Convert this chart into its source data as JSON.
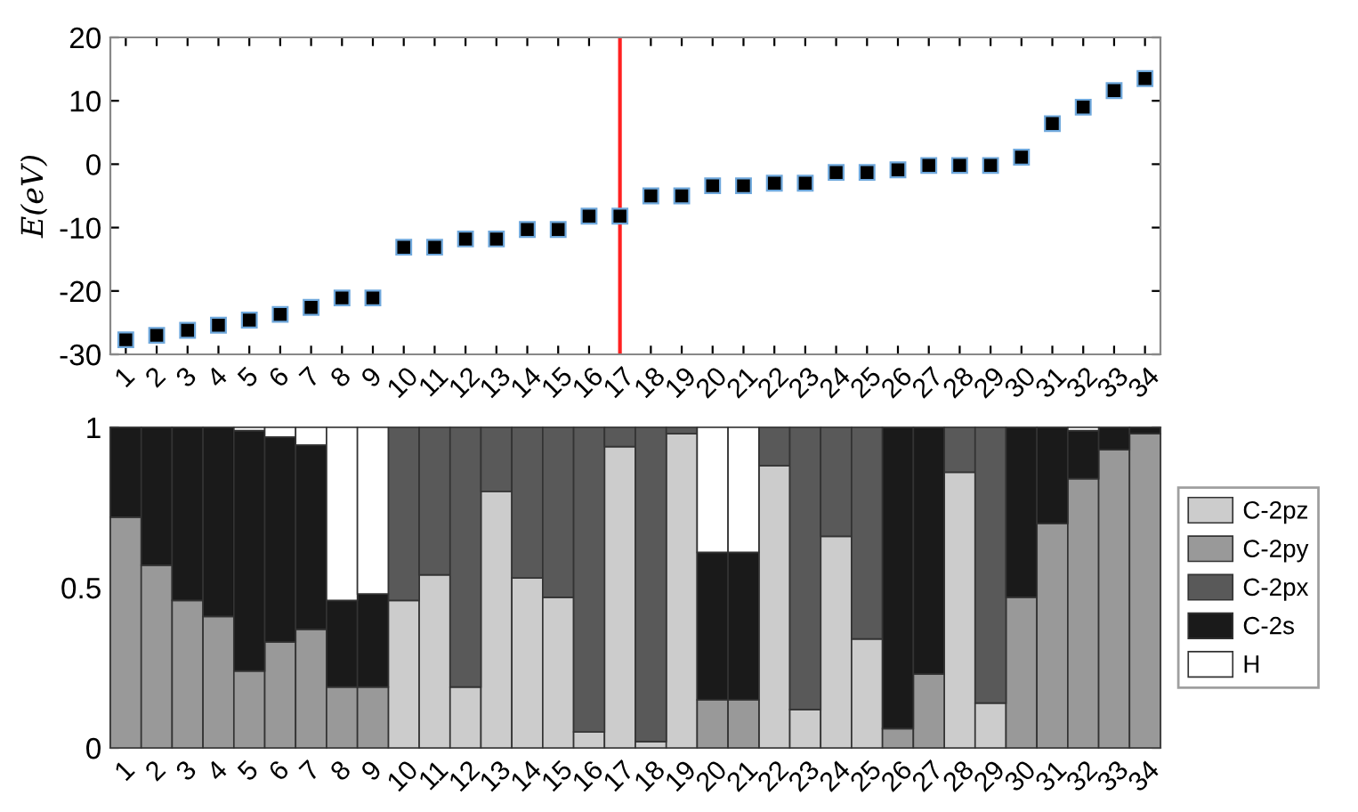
{
  "chart_data": [
    {
      "type": "scatter",
      "ylabel": "E(eV)",
      "categories": [
        "1",
        "2",
        "3",
        "4",
        "5",
        "6",
        "7",
        "8",
        "9",
        "10",
        "11",
        "12",
        "13",
        "14",
        "15",
        "16",
        "17",
        "18",
        "19",
        "20",
        "21",
        "22",
        "23",
        "24",
        "25",
        "26",
        "27",
        "28",
        "29",
        "30",
        "31",
        "32",
        "33",
        "34"
      ],
      "values": [
        -27.7,
        -27.0,
        -26.2,
        -25.4,
        -24.6,
        -23.7,
        -22.6,
        -21.1,
        -21.1,
        -13.1,
        -13.1,
        -11.8,
        -11.8,
        -10.3,
        -10.3,
        -8.2,
        -8.2,
        -5.0,
        -5.0,
        -3.4,
        -3.4,
        -3.0,
        -3.0,
        -1.3,
        -1.3,
        -0.9,
        -0.2,
        -0.2,
        -0.2,
        1.1,
        6.4,
        9.0,
        11.6,
        13.5
      ],
      "color": "#000000",
      "marker": "square",
      "ylim": [
        -30,
        20
      ],
      "yticks": [
        -30,
        -20,
        -10,
        0,
        10,
        20
      ],
      "grid": false,
      "ref_lines": [
        {
          "axis": "x",
          "value": "17",
          "color": "#ff2020"
        }
      ]
    },
    {
      "type": "bar",
      "stacked": true,
      "categories": [
        "1",
        "2",
        "3",
        "4",
        "5",
        "6",
        "7",
        "8",
        "9",
        "10",
        "11",
        "12",
        "13",
        "14",
        "15",
        "16",
        "17",
        "18",
        "19",
        "20",
        "21",
        "22",
        "23",
        "24",
        "25",
        "26",
        "27",
        "28",
        "29",
        "30",
        "31",
        "32",
        "33",
        "34"
      ],
      "ylim": [
        0,
        1
      ],
      "yticks": [
        0,
        0.5,
        1
      ],
      "grid": false,
      "legend": "right",
      "series": [
        {
          "name": "C-2pz",
          "color": "#cccccc",
          "values": [
            0,
            0,
            0,
            0,
            0,
            0,
            0,
            0,
            0,
            0.46,
            0.54,
            0.19,
            0.8,
            0.53,
            0.47,
            0.05,
            0.94,
            0.02,
            0.98,
            0,
            0,
            0.88,
            0.12,
            0.66,
            0.34,
            0,
            0,
            0.86,
            0.14,
            0,
            0,
            0,
            0,
            0
          ]
        },
        {
          "name": "C-2py",
          "color": "#999999",
          "values": [
            0.72,
            0.57,
            0.46,
            0.41,
            0.24,
            0.33,
            0.37,
            0.19,
            0.19,
            0,
            0,
            0,
            0,
            0,
            0,
            0,
            0,
            0,
            0,
            0.15,
            0.15,
            0,
            0,
            0,
            0,
            0.06,
            0.23,
            0,
            0,
            0.47,
            0.7,
            0.84,
            0.93,
            0.98
          ]
        },
        {
          "name": "C-2px",
          "color": "#595959",
          "values": [
            0,
            0,
            0,
            0,
            0,
            0,
            0,
            0,
            0,
            0.54,
            0.46,
            0.81,
            0.2,
            0.47,
            0.53,
            0.95,
            0.06,
            0.98,
            0.02,
            0,
            0,
            0.12,
            0.88,
            0.34,
            0.66,
            0,
            0,
            0.14,
            0.86,
            0,
            0,
            0,
            0,
            0
          ]
        },
        {
          "name": "C-2s",
          "color": "#1a1a1a",
          "values": [
            0.28,
            0.43,
            0.54,
            0.59,
            0.75,
            0.64,
            0.575,
            0.27,
            0.29,
            0,
            0,
            0,
            0,
            0,
            0,
            0,
            0,
            0,
            0,
            0.46,
            0.46,
            0,
            0,
            0,
            0,
            0.94,
            0.77,
            0,
            0,
            0.53,
            0.3,
            0.15,
            0.07,
            0.02
          ]
        },
        {
          "name": "H",
          "color": "#ffffff",
          "values": [
            0,
            0,
            0,
            0,
            0.01,
            0.03,
            0.055,
            0.54,
            0.52,
            0,
            0,
            0,
            0,
            0,
            0,
            0,
            0,
            0,
            0,
            0.39,
            0.39,
            0,
            0,
            0,
            0,
            0,
            0,
            0,
            0,
            0,
            0,
            0.01,
            0,
            0
          ]
        }
      ]
    }
  ]
}
